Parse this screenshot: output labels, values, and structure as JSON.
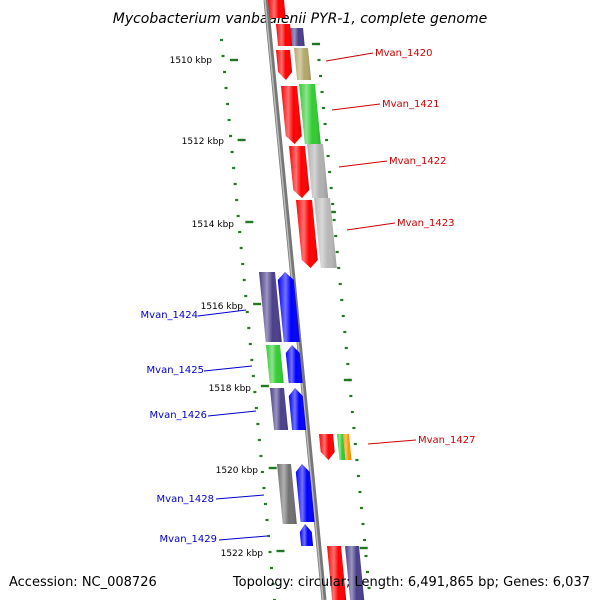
{
  "title": "Mycobacterium vanbaalenii PYR-1, complete genome",
  "footer": {
    "accession": "Accession: NC_008726",
    "summary": "Topology: circular; Length: 6,491,865 bp; Genes: 6,037"
  },
  "scale_ticks": [
    {
      "label": "1510 kbp"
    },
    {
      "label": "1512 kbp"
    },
    {
      "label": "1514 kbp"
    },
    {
      "label": "1516 kbp"
    },
    {
      "label": "1518 kbp"
    },
    {
      "label": "1520 kbp"
    },
    {
      "label": "1522 kbp"
    }
  ],
  "gene_labels_right": [
    {
      "name": "Mvan_1420"
    },
    {
      "name": "Mvan_1421"
    },
    {
      "name": "Mvan_1422"
    },
    {
      "name": "Mvan_1423"
    },
    {
      "name": "Mvan_1427"
    }
  ],
  "gene_labels_left": [
    {
      "name": "Mvan_1424"
    },
    {
      "name": "Mvan_1425"
    },
    {
      "name": "Mvan_1426"
    },
    {
      "name": "Mvan_1428"
    },
    {
      "name": "Mvan_1429"
    }
  ],
  "colors": {
    "right_label": "#cc0000",
    "left_label": "#0000cc",
    "backbone": "#888888",
    "tick": "#227722",
    "forward_strand": "#ff0000",
    "reverse_strand": "#0000ff"
  }
}
